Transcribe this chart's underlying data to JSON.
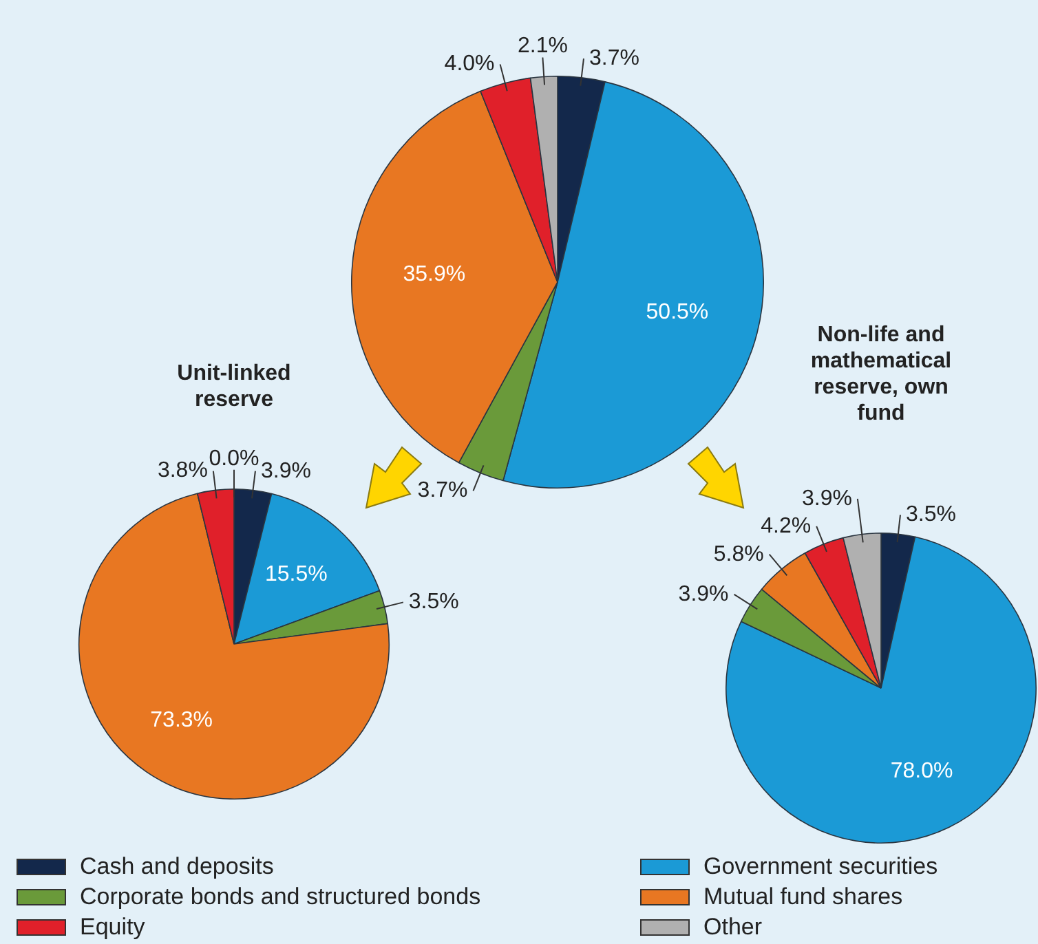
{
  "chart_data": [
    {
      "type": "pie",
      "categories": [
        "Cash and deposits",
        "Government securities",
        "Corporate bonds and structured bonds",
        "Mutual fund shares",
        "Equity",
        "Other"
      ],
      "values": [
        3.7,
        50.5,
        3.7,
        35.9,
        4.0,
        2.1
      ],
      "value_labels": [
        "3.7%",
        "50.5%",
        "3.7%",
        "35.9%",
        "4.0%",
        "2.1%"
      ],
      "colors": [
        "#13284b",
        "#1b9ad6",
        "#6a9a3a",
        "#e87722",
        "#e0202a",
        "#b0b0b0"
      ],
      "legend": "bottom"
    },
    {
      "type": "pie",
      "title": "Unit-linked reserve",
      "values": [
        3.9,
        15.5,
        3.5,
        73.3,
        3.8,
        0.0
      ],
      "value_labels": [
        "3.9%",
        "15.5%",
        "3.5%",
        "73.3%",
        "3.8%",
        "0.0%"
      ],
      "colors": [
        "#13284b",
        "#1b9ad6",
        "#6a9a3a",
        "#e87722",
        "#e0202a",
        "#b0b0b0"
      ]
    },
    {
      "type": "pie",
      "title": "Non-life and mathematical reserve, own fund",
      "values": [
        3.5,
        78.0,
        3.9,
        5.8,
        4.2,
        3.9
      ],
      "value_labels": [
        "3.5%",
        "78.0%",
        "3.9%",
        "5.8%",
        "4.2%",
        "3.9%"
      ],
      "colors": [
        "#13284b",
        "#1b9ad6",
        "#6a9a3a",
        "#e87722",
        "#e0202a",
        "#b0b0b0"
      ]
    }
  ]
}
